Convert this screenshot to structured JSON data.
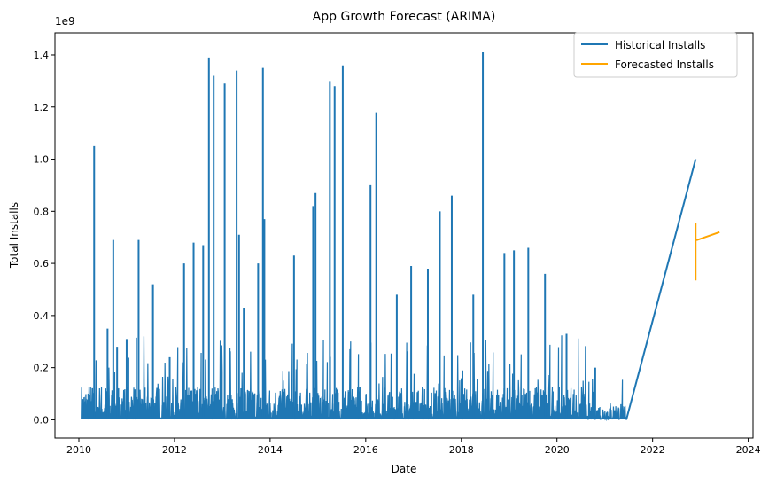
{
  "chart_data": {
    "type": "line",
    "title": "App Growth Forecast (ARIMA)",
    "xlabel": "Date",
    "ylabel": "Total Installs",
    "y_offset_label": "1e9",
    "xlim": [
      2009.5,
      2024.1
    ],
    "ylim": [
      -0.07,
      1.485
    ],
    "x_ticks": [
      2010,
      2012,
      2014,
      2016,
      2018,
      2020,
      2022,
      2024
    ],
    "y_ticks": [
      0.0,
      0.2,
      0.4,
      0.6,
      0.8,
      1.0,
      1.2,
      1.4
    ],
    "y_tick_labels": [
      "0.0",
      "0.2",
      "0.4",
      "0.6",
      "0.8",
      "1.0",
      "1.2",
      "1.4"
    ],
    "grid": false,
    "legend_position": "top-right",
    "series": [
      {
        "name": "Historical Installs",
        "color": "#1f77b4",
        "points": [
          [
            2010.05,
            0.01
          ],
          [
            2010.12,
            0.07
          ],
          [
            2010.2,
            0.1
          ],
          [
            2010.32,
            1.05
          ],
          [
            2010.6,
            0.35
          ],
          [
            2010.72,
            0.69
          ],
          [
            2010.8,
            0.28
          ],
          [
            2011.0,
            0.31
          ],
          [
            2011.25,
            0.69
          ],
          [
            2011.55,
            0.52
          ],
          [
            2011.9,
            0.24
          ],
          [
            2012.2,
            0.6
          ],
          [
            2012.4,
            0.68
          ],
          [
            2012.6,
            0.67
          ],
          [
            2012.72,
            1.39
          ],
          [
            2012.82,
            1.32
          ],
          [
            2013.05,
            1.29
          ],
          [
            2013.3,
            1.34
          ],
          [
            2013.35,
            0.71
          ],
          [
            2013.45,
            0.43
          ],
          [
            2013.75,
            0.6
          ],
          [
            2013.85,
            1.35
          ],
          [
            2013.88,
            0.77
          ],
          [
            2014.5,
            0.63
          ],
          [
            2014.9,
            0.82
          ],
          [
            2014.95,
            0.87
          ],
          [
            2015.25,
            1.3
          ],
          [
            2015.35,
            1.28
          ],
          [
            2015.52,
            1.36
          ],
          [
            2016.1,
            0.9
          ],
          [
            2016.22,
            1.18
          ],
          [
            2016.65,
            0.48
          ],
          [
            2016.95,
            0.59
          ],
          [
            2017.3,
            0.58
          ],
          [
            2017.55,
            0.8
          ],
          [
            2017.8,
            0.86
          ],
          [
            2018.25,
            0.48
          ],
          [
            2018.45,
            1.41
          ],
          [
            2018.9,
            0.64
          ],
          [
            2019.1,
            0.65
          ],
          [
            2019.4,
            0.66
          ],
          [
            2019.75,
            0.56
          ],
          [
            2020.2,
            0.33
          ],
          [
            2020.8,
            0.2
          ],
          [
            2021.45,
            0.0
          ],
          [
            2022.9,
            1.0
          ]
        ]
      },
      {
        "name": "Forecasted Installs",
        "color": "#ffa500",
        "points": [
          [
            2022.9,
            0.755
          ],
          [
            2022.9,
            0.535
          ],
          [
            2022.9,
            0.69
          ],
          [
            2022.93,
            0.69
          ],
          [
            2023.4,
            0.72
          ]
        ]
      }
    ]
  }
}
